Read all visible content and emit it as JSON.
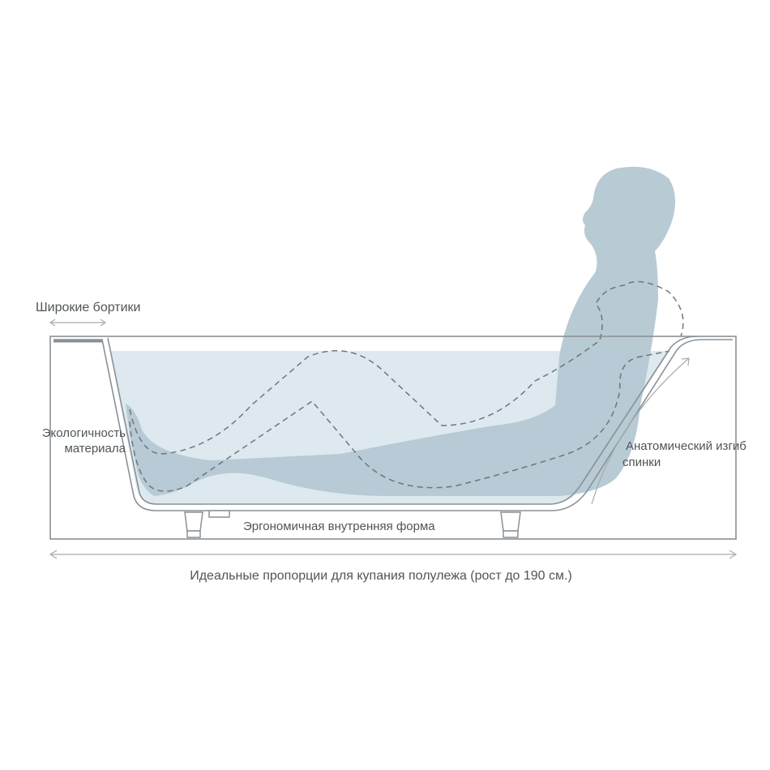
{
  "labels": {
    "wide_rims": "Широкие бортики",
    "eco_material_line1": "Экологичность",
    "eco_material_line2": "материала",
    "anatomic_back_line1": "Анатомический изгиб",
    "anatomic_back_line2": "спинки",
    "ergonomic_shape": "Эргономичная внутренняя форма",
    "ideal_proportions": "Идеальные пропорции для купания полулежа (рост до 190 см.)"
  },
  "colors": {
    "outline": "#8a9196",
    "water": "#dde9ef",
    "body": "#b4c8d3",
    "dashed": "#6d767c",
    "text": "#4f5558"
  }
}
